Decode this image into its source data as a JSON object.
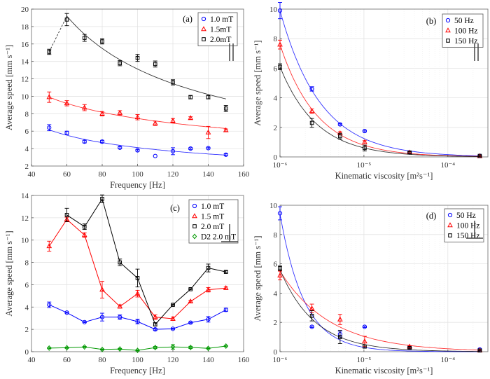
{
  "chart_data": [
    {
      "panel_label": "(a)",
      "type": "scatter",
      "xlabel": "Frequency [Hz]",
      "ylabel": "Average speed [mm s⁻¹]",
      "xscale": "linear",
      "xlim": [
        40,
        160
      ],
      "ylim": [
        2,
        20
      ],
      "xticks": [
        40,
        60,
        80,
        100,
        120,
        140,
        160
      ],
      "xtick_labels": [
        "40",
        "60",
        "80",
        "100",
        "120",
        "140",
        "160"
      ],
      "yticks": [
        2,
        4,
        6,
        8,
        10,
        12,
        14,
        16,
        18,
        20
      ],
      "ytick_labels": [
        "2",
        "4",
        "6",
        "8",
        "10",
        "12",
        "14",
        "16",
        "18",
        "20"
      ],
      "grid": true,
      "legend_placement": "top-right",
      "symbol": "parallel",
      "x": [
        50,
        60,
        70,
        80,
        90,
        100,
        110,
        120,
        130,
        140,
        150
      ],
      "series": [
        {
          "name": "1.0 mT",
          "color": "#0000ff",
          "marker": "circle",
          "values": [
            6.4,
            5.8,
            4.8,
            4.8,
            4.1,
            3.8,
            3.15,
            3.7,
            4.0,
            4.05,
            3.3
          ],
          "errors": [
            0.35,
            0.2,
            0.15,
            0.15,
            0.1,
            0.1,
            0,
            0.4,
            0.1,
            0.1,
            0.1
          ],
          "fit": {
            "type": "power",
            "a": 6.15,
            "b": 0.58,
            "ref": 50,
            "range": [
              50,
              150
            ]
          }
        },
        {
          "name": "1.5mT",
          "color": "#ff0000",
          "marker": "triangle",
          "values": [
            9.9,
            9.2,
            8.7,
            8.0,
            8.1,
            7.6,
            6.9,
            7.2,
            7.5,
            5.85,
            6.1
          ],
          "errors": [
            0.6,
            0.3,
            0.35,
            0.25,
            0.25,
            0.3,
            0.25,
            0.25,
            0.15,
            0.7,
            0.15
          ],
          "fit": {
            "type": "power",
            "a": 9.9,
            "b": 0.41,
            "ref": 50,
            "range": [
              50,
              150
            ]
          }
        },
        {
          "name": "2.0mT",
          "color": "#000000",
          "marker": "square",
          "values": [
            15.1,
            18.8,
            16.7,
            16.3,
            13.8,
            14.4,
            13.7,
            11.6,
            9.9,
            9.9,
            8.6
          ],
          "errors": [
            0.3,
            0.7,
            0.4,
            0.3,
            0.3,
            0.4,
            0.35,
            0.3,
            0.2,
            0.2,
            0.35
          ],
          "fit": {
            "type": "power",
            "a": 19.2,
            "b": 0.745,
            "ref": 60,
            "range": [
              60,
              150
            ]
          },
          "dashed_link": [
            [
              50,
              15.1
            ],
            [
              60,
              19.2
            ]
          ]
        }
      ]
    },
    {
      "panel_label": "(b)",
      "type": "scatter",
      "xlabel": "Kinematic viscosity [m²s⁻¹]",
      "ylabel": "Average speed [mm s⁻¹]",
      "xscale": "log",
      "xlim": [
        1e-06,
        0.0003
      ],
      "ylim": [
        0,
        10
      ],
      "xticks": [
        1e-06,
        1e-05,
        0.0001
      ],
      "xtick_labels": [
        "10⁻⁶",
        "10⁻⁵",
        "10⁻⁴"
      ],
      "yticks": [
        0,
        2,
        4,
        6,
        8,
        10
      ],
      "ytick_labels": [
        "0",
        "2",
        "4",
        "6",
        "8",
        "10"
      ],
      "grid": true,
      "legend_placement": "top-right",
      "symbol": "parallel",
      "x": [
        1e-06,
        2.4e-06,
        5.2e-06,
        1.02e-05,
        3.5e-05,
        0.00024
      ],
      "series": [
        {
          "name": "50 Hz",
          "color": "#0000ff",
          "marker": "circle",
          "values": [
            9.9,
            4.6,
            2.2,
            1.75,
            0.3,
            0.07
          ],
          "errors": [
            0.55,
            0.15,
            0.05,
            0.05,
            0.05,
            0.03
          ],
          "fit": {
            "type": "power",
            "a": 9.9,
            "b": 0.9,
            "ref": 1e-06,
            "range": [
              1e-06,
              0.00024
            ]
          }
        },
        {
          "name": "100 Hz",
          "color": "#ff0000",
          "marker": "triangle",
          "values": [
            7.6,
            3.1,
            1.6,
            1.0,
            0.3,
            0.05
          ],
          "errors": [
            0.3,
            0.15,
            0.1,
            0.1,
            0.05,
            0.03
          ],
          "fit": {
            "type": "power",
            "a": 7.6,
            "b": 0.98,
            "ref": 1e-06,
            "range": [
              1e-06,
              0.00024
            ]
          }
        },
        {
          "name": "150 Hz",
          "color": "#000000",
          "marker": "square",
          "values": [
            6.1,
            2.3,
            1.4,
            0.6,
            0.3,
            0.07
          ],
          "errors": [
            0.2,
            0.3,
            0.2,
            0.2,
            0.05,
            0.03
          ],
          "fit": {
            "type": "power",
            "a": 6.1,
            "b": 1.0,
            "ref": 1e-06,
            "range": [
              1e-06,
              0.00024
            ]
          }
        }
      ]
    },
    {
      "panel_label": "(c)",
      "type": "line",
      "xlabel": "Frequency [Hz]",
      "ylabel": "Average speed [mm s⁻¹]",
      "xscale": "linear",
      "xlim": [
        40,
        160
      ],
      "ylim": [
        0,
        14
      ],
      "xticks": [
        40,
        60,
        80,
        100,
        120,
        140,
        160
      ],
      "xtick_labels": [
        "40",
        "60",
        "80",
        "100",
        "120",
        "140",
        "160"
      ],
      "yticks": [
        0,
        2,
        4,
        6,
        8,
        10,
        12,
        14
      ],
      "ytick_labels": [
        "0",
        "2",
        "4",
        "6",
        "8",
        "10",
        "12",
        "14"
      ],
      "grid": true,
      "legend_placement": "top-right",
      "symbol": "perpendicular",
      "x": [
        50,
        60,
        70,
        80,
        90,
        100,
        110,
        120,
        130,
        140,
        150
      ],
      "series": [
        {
          "name": "1.0 mT",
          "color": "#0000ff",
          "marker": "circle",
          "values": [
            4.2,
            3.5,
            2.65,
            3.1,
            3.1,
            2.7,
            2.0,
            2.05,
            2.6,
            2.9,
            3.75
          ],
          "errors": [
            0.25,
            0.05,
            0.05,
            0.35,
            0.2,
            0.2,
            0.1,
            0.05,
            0.05,
            0.25,
            0.15
          ]
        },
        {
          "name": "1.5 mT",
          "color": "#ff0000",
          "marker": "triangle",
          "values": [
            9.45,
            11.85,
            10.45,
            5.55,
            4.05,
            5.2,
            3.1,
            2.95,
            4.5,
            5.55,
            5.7
          ],
          "errors": [
            0.45,
            0.2,
            0.2,
            0.75,
            0.15,
            0.3,
            0.2,
            0.15,
            0.1,
            0.2,
            0.1
          ]
        },
        {
          "name": "2.0 mT",
          "color": "#000000",
          "marker": "square",
          "values": [
            null,
            12.25,
            11.2,
            13.7,
            8.0,
            6.6,
            2.45,
            4.2,
            5.6,
            7.5,
            7.15
          ],
          "errors": [
            null,
            0.6,
            0.25,
            0.35,
            0.3,
            0.8,
            0.15,
            0.05,
            0.05,
            0.35,
            0.1
          ]
        },
        {
          "name": "D2 2.0 mT",
          "color": "#009900",
          "marker": "diamond",
          "values": [
            0.32,
            0.35,
            0.42,
            0.2,
            0.24,
            0.12,
            0.37,
            0.43,
            0.38,
            0.3,
            0.5
          ],
          "errors": [
            0.05,
            0.05,
            0.05,
            0.05,
            0.05,
            0.05,
            0.1,
            0.2,
            0.1,
            0.05,
            0.05
          ]
        }
      ]
    },
    {
      "panel_label": "(d)",
      "type": "scatter",
      "xlabel": "Kinematic viscosity [m²s⁻¹]",
      "ylabel": "Average speed [mm s⁻¹]",
      "xscale": "log",
      "xlim": [
        1e-06,
        0.0003
      ],
      "ylim": [
        0,
        10
      ],
      "xticks": [
        1e-06,
        1e-05,
        0.0001
      ],
      "xtick_labels": [
        "10⁻⁶",
        "10⁻⁵",
        "10⁻⁴"
      ],
      "yticks": [
        0,
        2,
        4,
        6,
        8,
        10
      ],
      "ytick_labels": [
        "0",
        "2",
        "4",
        "6",
        "8",
        "10"
      ],
      "grid": true,
      "legend_placement": "top-right",
      "symbol": "perpendicular",
      "x": [
        1e-06,
        2.4e-06,
        5.2e-06,
        1.02e-05,
        3.5e-05,
        0.00024
      ],
      "series": [
        {
          "name": "50 Hz",
          "color": "#0000ff",
          "marker": "circle",
          "values": [
            9.45,
            1.7,
            1.2,
            1.7,
            0.3,
            0.15
          ],
          "errors": [
            0.45,
            0.05,
            0.2,
            0.05,
            0.05,
            0.05
          ],
          "fit": {
            "type": "power",
            "a": 9.4,
            "b": 1.5,
            "ref": 1e-06,
            "range": [
              1e-06,
              0.00024
            ]
          }
        },
        {
          "name": "100 Hz",
          "color": "#ff0000",
          "marker": "triangle",
          "values": [
            5.2,
            2.95,
            2.2,
            0.7,
            0.35,
            0.08
          ],
          "errors": [
            0.3,
            0.3,
            0.35,
            0.35,
            0.05,
            0.03
          ],
          "fit": {
            "type": "power",
            "a": 5.5,
            "b": 0.72,
            "ref": 1e-06,
            "range": [
              1e-06,
              0.00024
            ]
          }
        },
        {
          "name": "150 Hz",
          "color": "#000000",
          "marker": "square",
          "values": [
            5.7,
            2.45,
            1.0,
            0.35,
            0.25,
            0.08
          ],
          "errors": [
            0.15,
            0.35,
            0.45,
            0.1,
            0.05,
            0.03
          ],
          "fit": {
            "type": "power",
            "a": 5.6,
            "b": 1.05,
            "ref": 1e-06,
            "range": [
              1e-06,
              0.00024
            ]
          }
        }
      ]
    }
  ]
}
